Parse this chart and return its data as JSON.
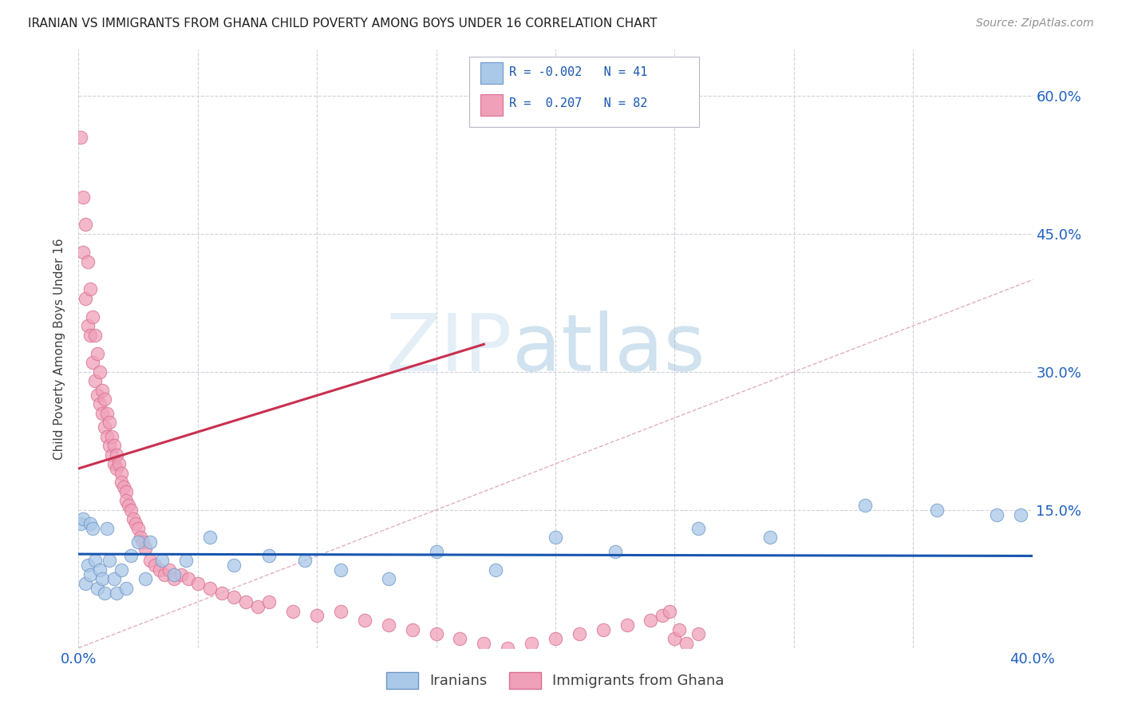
{
  "title": "IRANIAN VS IMMIGRANTS FROM GHANA CHILD POVERTY AMONG BOYS UNDER 16 CORRELATION CHART",
  "source": "Source: ZipAtlas.com",
  "ylabel": "Child Poverty Among Boys Under 16",
  "xlim": [
    0,
    0.4
  ],
  "ylim": [
    0,
    0.65
  ],
  "color_iranian": "#aac8e8",
  "color_ghana": "#f0a0b8",
  "color_iranian_line": "#1856b0",
  "color_ghana_line": "#c83050",
  "color_diag": "#e0b0c0",
  "watermark_zip": "ZIP",
  "watermark_atlas": "atlas",
  "legend_sublabel1": "Iranians",
  "legend_sublabel2": "Immigrants from Ghana",
  "iranians_x": [
    0.001,
    0.002,
    0.003,
    0.004,
    0.005,
    0.005,
    0.006,
    0.007,
    0.008,
    0.009,
    0.01,
    0.011,
    0.012,
    0.013,
    0.015,
    0.016,
    0.018,
    0.02,
    0.022,
    0.025,
    0.028,
    0.03,
    0.035,
    0.04,
    0.045,
    0.055,
    0.065,
    0.08,
    0.095,
    0.11,
    0.13,
    0.15,
    0.175,
    0.2,
    0.225,
    0.26,
    0.29,
    0.33,
    0.36,
    0.385,
    0.395
  ],
  "iranians_y": [
    0.135,
    0.14,
    0.07,
    0.09,
    0.135,
    0.08,
    0.13,
    0.095,
    0.065,
    0.085,
    0.075,
    0.06,
    0.13,
    0.095,
    0.075,
    0.06,
    0.085,
    0.065,
    0.1,
    0.115,
    0.075,
    0.115,
    0.095,
    0.08,
    0.095,
    0.12,
    0.09,
    0.1,
    0.095,
    0.085,
    0.075,
    0.105,
    0.085,
    0.12,
    0.105,
    0.13,
    0.12,
    0.155,
    0.15,
    0.145,
    0.145
  ],
  "ghana_x": [
    0.001,
    0.002,
    0.002,
    0.003,
    0.003,
    0.004,
    0.004,
    0.005,
    0.005,
    0.006,
    0.006,
    0.007,
    0.007,
    0.008,
    0.008,
    0.009,
    0.009,
    0.01,
    0.01,
    0.011,
    0.011,
    0.012,
    0.012,
    0.013,
    0.013,
    0.014,
    0.014,
    0.015,
    0.015,
    0.016,
    0.016,
    0.017,
    0.018,
    0.018,
    0.019,
    0.02,
    0.02,
    0.021,
    0.022,
    0.023,
    0.024,
    0.025,
    0.026,
    0.027,
    0.028,
    0.03,
    0.032,
    0.034,
    0.036,
    0.038,
    0.04,
    0.043,
    0.046,
    0.05,
    0.055,
    0.06,
    0.065,
    0.07,
    0.075,
    0.08,
    0.09,
    0.1,
    0.11,
    0.12,
    0.13,
    0.14,
    0.15,
    0.16,
    0.17,
    0.18,
    0.19,
    0.2,
    0.21,
    0.22,
    0.23,
    0.24,
    0.245,
    0.248,
    0.25,
    0.252,
    0.255,
    0.26
  ],
  "ghana_y": [
    0.555,
    0.49,
    0.43,
    0.46,
    0.38,
    0.42,
    0.35,
    0.39,
    0.34,
    0.36,
    0.31,
    0.34,
    0.29,
    0.32,
    0.275,
    0.3,
    0.265,
    0.28,
    0.255,
    0.27,
    0.24,
    0.255,
    0.23,
    0.245,
    0.22,
    0.23,
    0.21,
    0.22,
    0.2,
    0.21,
    0.195,
    0.2,
    0.19,
    0.18,
    0.175,
    0.17,
    0.16,
    0.155,
    0.15,
    0.14,
    0.135,
    0.13,
    0.12,
    0.115,
    0.108,
    0.095,
    0.09,
    0.085,
    0.08,
    0.085,
    0.075,
    0.08,
    0.075,
    0.07,
    0.065,
    0.06,
    0.055,
    0.05,
    0.045,
    0.05,
    0.04,
    0.035,
    0.04,
    0.03,
    0.025,
    0.02,
    0.015,
    0.01,
    0.005,
    0.0,
    0.005,
    0.01,
    0.015,
    0.02,
    0.025,
    0.03,
    0.035,
    0.04,
    0.01,
    0.02,
    0.005,
    0.015
  ],
  "iran_line_x": [
    0.0,
    0.4
  ],
  "iran_line_y": [
    0.102,
    0.1
  ],
  "ghana_line_x": [
    0.0,
    0.17
  ],
  "ghana_line_y": [
    0.195,
    0.33
  ]
}
